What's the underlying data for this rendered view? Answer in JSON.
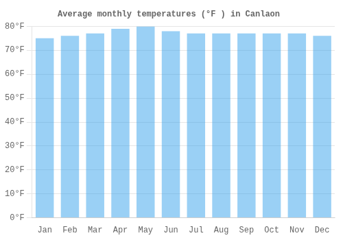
{
  "chart_data": {
    "type": "bar",
    "title": "Average monthly temperatures (°F ) in Canlaon",
    "categories": [
      "Jan",
      "Feb",
      "Mar",
      "Apr",
      "May",
      "Jun",
      "Jul",
      "Aug",
      "Sep",
      "Oct",
      "Nov",
      "Dec"
    ],
    "values": [
      75,
      76,
      77,
      79,
      80,
      78,
      77,
      77,
      77,
      77,
      77,
      76
    ],
    "ylim": [
      0,
      80
    ],
    "yticks": [
      {
        "value": 0,
        "label": "0°F"
      },
      {
        "value": 10,
        "label": "10°F"
      },
      {
        "value": 20,
        "label": "20°F"
      },
      {
        "value": 30,
        "label": "30°F"
      },
      {
        "value": 40,
        "label": "40°F"
      },
      {
        "value": 50,
        "label": "50°F"
      },
      {
        "value": 60,
        "label": "60°F"
      },
      {
        "value": 70,
        "label": "70°F"
      },
      {
        "value": 80,
        "label": "80°F"
      }
    ],
    "grid": true
  }
}
